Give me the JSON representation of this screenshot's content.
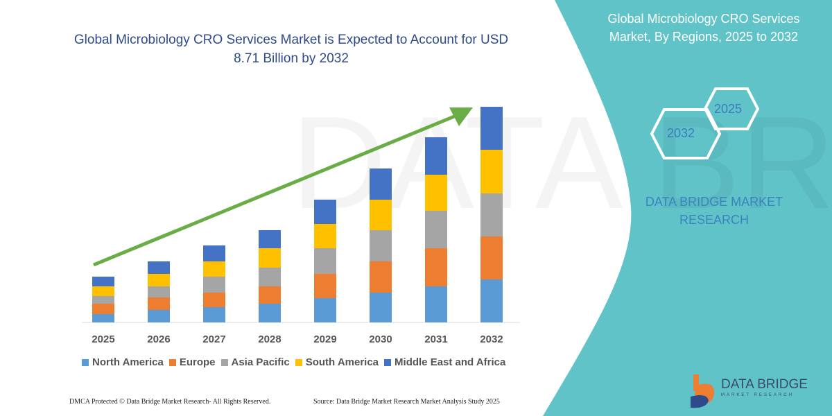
{
  "colors": {
    "panel": "#60c3c8",
    "title": "#2e4a8a",
    "arrow": "#6aac46",
    "north_america": "#5b9bd5",
    "europe": "#ed7d31",
    "asia_pacific": "#a5a5a5",
    "south_america": "#ffc000",
    "middle_east_africa": "#4472c4"
  },
  "right_panel": {
    "title": "Global Microbiology CRO Services Market, By Regions, 2025 to 2032",
    "hex_2032": "2032",
    "hex_2025": "2025",
    "brand": "DATA BRIDGE MARKET RESEARCH"
  },
  "logo": {
    "name": "DATA BRIDGE",
    "sub": "MARKET RESEARCH"
  },
  "footer": {
    "left": "DMCA Protected © Data Bridge Market Research-  All Rights Reserved.",
    "right": "Source: Data Bridge Market Research  Market Analysis Study 2025"
  },
  "chart_data": {
    "type": "bar",
    "stacked": true,
    "title": "Global Microbiology CRO Services Market is Expected to Account for USD 8.71 Billion by 2032",
    "categories": [
      "2025",
      "2026",
      "2027",
      "2028",
      "2029",
      "2030",
      "2031",
      "2032"
    ],
    "units": "relative (no y-axis printed)",
    "grid": false,
    "legend_position": "bottom",
    "series": [
      {
        "name": "North America",
        "values": [
          12,
          18,
          22,
          27,
          35,
          43,
          52,
          62
        ]
      },
      {
        "name": "Europe",
        "values": [
          15,
          18,
          21,
          25,
          35,
          45,
          55,
          62
        ]
      },
      {
        "name": "Asia Pacific",
        "values": [
          11,
          16,
          23,
          27,
          37,
          45,
          54,
          62
        ]
      },
      {
        "name": "South America",
        "values": [
          14,
          18,
          22,
          28,
          35,
          44,
          52,
          63
        ]
      },
      {
        "name": "Middle East and Africa",
        "values": [
          14,
          18,
          23,
          26,
          35,
          45,
          54,
          62
        ]
      }
    ],
    "trend_arrow": true
  }
}
